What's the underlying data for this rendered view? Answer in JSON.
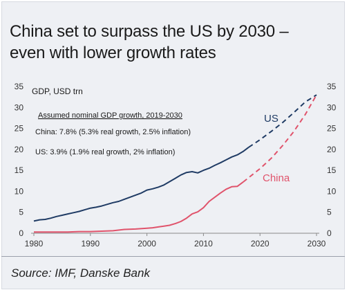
{
  "header": {
    "title_line1": "China set to surpass the US by 2030 –",
    "title_line2": "even with lower growth rates"
  },
  "footer": {
    "source": "Source: IMF, Danske Bank"
  },
  "chart_data": {
    "type": "line",
    "title": "China set to surpass the US by 2030 – even with lower growth rates",
    "ylabel": "GDP, USD trn",
    "xlim": [
      1980,
      2030
    ],
    "ylim": [
      0,
      35
    ],
    "x_ticks": [
      1980,
      1990,
      2000,
      2010,
      2020,
      2030
    ],
    "y_ticks": [
      0,
      5,
      10,
      15,
      20,
      25,
      30,
      35
    ],
    "grid": false,
    "annotations": {
      "heading": "Assumed nominal GDP growth,  2019-2030",
      "china": "China: 7.8% (5.3% real growth, 2.5% inflation)",
      "us": "US: 3.9% (1.9% real growth, 2% inflation)"
    },
    "series": [
      {
        "name": "US",
        "color": "#1f3b64",
        "x": [
          1980,
          1981,
          1982,
          1983,
          1984,
          1985,
          1986,
          1987,
          1988,
          1989,
          1990,
          1991,
          1992,
          1993,
          1994,
          1995,
          1996,
          1997,
          1998,
          1999,
          2000,
          2001,
          2002,
          2003,
          2004,
          2005,
          2006,
          2007,
          2008,
          2009,
          2010,
          2011,
          2012,
          2013,
          2014,
          2015,
          2016,
          2017,
          2018
        ],
        "y": [
          2.9,
          3.2,
          3.3,
          3.6,
          4.0,
          4.3,
          4.6,
          4.9,
          5.2,
          5.6,
          6.0,
          6.2,
          6.5,
          6.9,
          7.3,
          7.6,
          8.1,
          8.6,
          9.1,
          9.6,
          10.3,
          10.6,
          11.0,
          11.5,
          12.3,
          13.1,
          13.9,
          14.5,
          14.7,
          14.4,
          15.0,
          15.5,
          16.2,
          16.8,
          17.5,
          18.2,
          18.7,
          19.5,
          20.5
        ],
        "projection": {
          "x": [
            2018,
            2020,
            2022,
            2024,
            2026,
            2028,
            2030
          ],
          "y": [
            20.5,
            22.3,
            24.3,
            26.4,
            28.8,
            31.3,
            33.0
          ]
        }
      },
      {
        "name": "China",
        "color": "#e0536b",
        "x": [
          1980,
          1982,
          1984,
          1986,
          1988,
          1990,
          1992,
          1994,
          1996,
          1998,
          2000,
          2001,
          2002,
          2003,
          2004,
          2005,
          2006,
          2007,
          2008,
          2009,
          2010,
          2011,
          2012,
          2013,
          2014,
          2015,
          2016,
          2017
        ],
        "y": [
          0.3,
          0.3,
          0.3,
          0.3,
          0.4,
          0.4,
          0.5,
          0.6,
          0.9,
          1.0,
          1.2,
          1.3,
          1.5,
          1.7,
          1.9,
          2.3,
          2.8,
          3.6,
          4.6,
          5.1,
          6.1,
          7.6,
          8.6,
          9.6,
          10.5,
          11.1,
          11.2,
          12.2
        ],
        "projection": {
          "x": [
            2017,
            2020,
            2022,
            2024,
            2026,
            2028,
            2030
          ],
          "y": [
            12.2,
            15.4,
            17.9,
            20.9,
            24.3,
            28.3,
            33.0
          ]
        }
      }
    ]
  }
}
